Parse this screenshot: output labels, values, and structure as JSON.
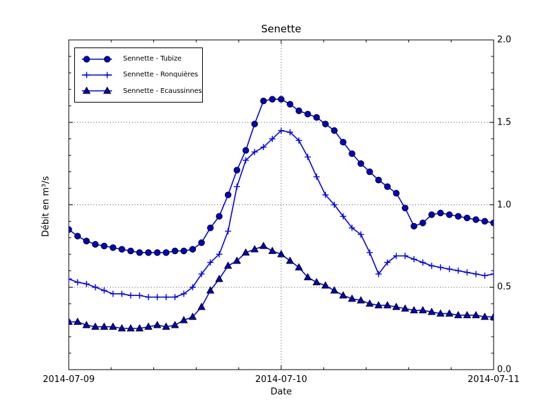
{
  "chart_data": {
    "type": "line",
    "title": "Senette",
    "xlabel": "Date",
    "ylabel": "Débit en m³/s",
    "x_unit": "hours from 2014-07-09 00:00, hourly samples",
    "xlim_hours": [
      0,
      48
    ],
    "ylim": [
      0.0,
      2.0
    ],
    "x_tick_hours": [
      0,
      24,
      48
    ],
    "x_tick_labels": [
      "2014-07-09",
      "2014-07-10",
      "2014-07-11"
    ],
    "x_minor_step_hours": 4.8,
    "y_ticks": [
      0.0,
      0.5,
      1.0,
      1.5,
      2.0
    ],
    "y_tick_labels": [
      "0.0",
      "0.5",
      "1.0",
      "1.5",
      "2.0"
    ],
    "y_minor_step": 0.1,
    "grid": {
      "y_at": [
        0.5,
        1.0,
        1.5
      ],
      "x_at_hours": [
        24
      ]
    },
    "legend_position": "upper left",
    "line_color": "#0000ee",
    "marker_fill": "#0000cc",
    "marker_edge": "#000000",
    "series": [
      {
        "name": "Sennette - Tubize",
        "marker": "circle",
        "values": [
          0.85,
          0.81,
          0.78,
          0.76,
          0.75,
          0.74,
          0.73,
          0.72,
          0.71,
          0.71,
          0.71,
          0.71,
          0.72,
          0.72,
          0.73,
          0.77,
          0.86,
          0.93,
          1.06,
          1.21,
          1.33,
          1.49,
          1.63,
          1.64,
          1.64,
          1.61,
          1.57,
          1.55,
          1.53,
          1.49,
          1.45,
          1.38,
          1.31,
          1.25,
          1.2,
          1.15,
          1.11,
          1.07,
          0.98,
          0.87,
          0.89,
          0.94,
          0.95,
          0.94,
          0.93,
          0.92,
          0.91,
          0.9,
          0.89
        ]
      },
      {
        "name": "Sennette - Ronquières",
        "marker": "plus",
        "values": [
          0.55,
          0.53,
          0.52,
          0.5,
          0.48,
          0.46,
          0.46,
          0.45,
          0.45,
          0.44,
          0.44,
          0.44,
          0.44,
          0.46,
          0.5,
          0.58,
          0.65,
          0.7,
          0.84,
          1.11,
          1.27,
          1.32,
          1.35,
          1.4,
          1.45,
          1.44,
          1.39,
          1.29,
          1.17,
          1.06,
          1.0,
          0.93,
          0.86,
          0.82,
          0.71,
          0.58,
          0.65,
          0.69,
          0.69,
          0.67,
          0.65,
          0.63,
          0.62,
          0.61,
          0.6,
          0.59,
          0.58,
          0.57,
          0.58
        ]
      },
      {
        "name": "Sennette - Ecaussinnes",
        "marker": "triangle",
        "values": [
          0.29,
          0.29,
          0.27,
          0.26,
          0.26,
          0.26,
          0.25,
          0.25,
          0.25,
          0.26,
          0.27,
          0.26,
          0.27,
          0.3,
          0.32,
          0.38,
          0.48,
          0.55,
          0.63,
          0.66,
          0.71,
          0.73,
          0.75,
          0.72,
          0.7,
          0.66,
          0.62,
          0.56,
          0.53,
          0.51,
          0.48,
          0.45,
          0.43,
          0.42,
          0.4,
          0.39,
          0.39,
          0.38,
          0.37,
          0.36,
          0.36,
          0.35,
          0.34,
          0.34,
          0.33,
          0.33,
          0.33,
          0.32,
          0.32
        ]
      }
    ]
  }
}
